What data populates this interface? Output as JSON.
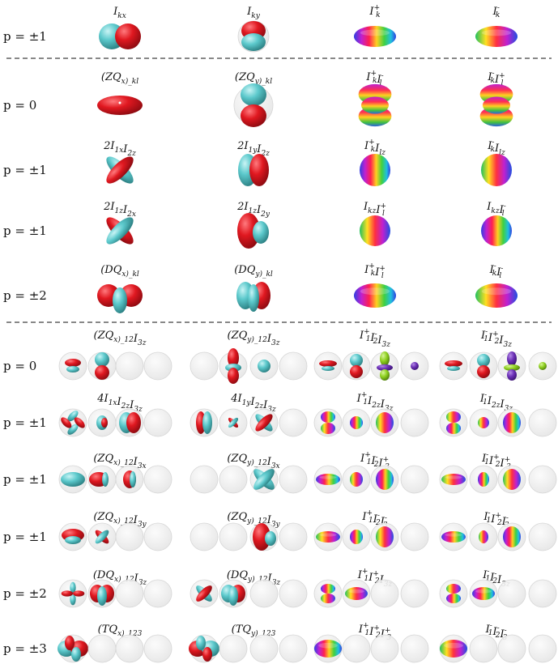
{
  "colors": {
    "red": "#e01820",
    "cyan": "#5cc9cc",
    "sphere": "#eeeeee",
    "sphere_edge": "#d0d0d0",
    "green": "#8ed01f",
    "purple": "#6a2fb5"
  },
  "rows": [
    {
      "p": "p = ±1",
      "labels": [
        "I_kx",
        "I_ky",
        "I_k^+",
        "I_k^-"
      ]
    },
    {
      "p": "p = 0",
      "labels": [
        "(ZQ_x)_kl",
        "(ZQ_y)_kl",
        "I_k^+ I_l^-",
        "I_k^- I_l^+"
      ]
    },
    {
      "p": "p = ±1",
      "labels": [
        "2I_1x I_2z",
        "2I_1y I_2z",
        "I_k^+ I_lz",
        "I_k^- I_lz"
      ]
    },
    {
      "p": "p = ±1",
      "labels": [
        "2I_1z I_2x",
        "2I_1z I_2y",
        "I_kz I_l^+",
        "I_kz I_l^-"
      ]
    },
    {
      "p": "p = ±2",
      "labels": [
        "(DQ_x)_kl",
        "(DQ_y)_kl",
        "I_k^+ I_l^+",
        "I_k^- I_l^-"
      ]
    },
    {
      "p": "p = 0",
      "labels": [
        "(ZQ_x)_12 I_3z",
        "(ZQ_y)_12 I_3z",
        "I_1^+ I_2^- I_3z",
        "I_1^- I_2^+ I_3z"
      ]
    },
    {
      "p": "p = ±1",
      "labels": [
        "4I_1x I_2z I_3z",
        "4I_1y I_2z I_3z",
        "I_1^+ I_2z I_3z",
        "I_1^- I_2z I_3z"
      ]
    },
    {
      "p": "p = ±1",
      "labels": [
        "(ZQ_x)_12 I_3x",
        "(ZQ_y)_12 I_3x",
        "I_1^+ I_2^- I_3^+",
        "I_1^- I_2^+ I_3^+"
      ]
    },
    {
      "p": "p = ±1",
      "labels": [
        "(ZQ_x)_12 I_3y",
        "(ZQ_y)_12 I_3y",
        "I_1^+ I_2^- I_3^-",
        "I_1^- I_2^+ I_3^-"
      ]
    },
    {
      "p": "p = ±2",
      "labels": [
        "(DQ_x)_12 I_3z",
        "(DQ_y)_12 I_3z",
        "I_1^+ I_2^+ I_3z",
        "I_1^- I_2^- I_3z"
      ]
    },
    {
      "p": "p = ±3",
      "labels": [
        "(TQ_x)_123",
        "(TQ_y)_123",
        "I_1^+ I_2^+ I_3^+",
        "I_1^- I_2^- I_3^-"
      ]
    }
  ]
}
